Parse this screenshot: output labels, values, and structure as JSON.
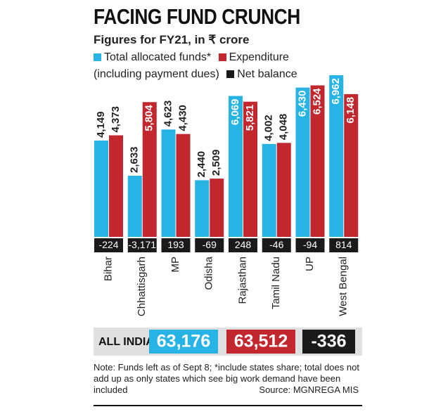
{
  "chart_data": {
    "type": "bar",
    "title": "FACING FUND CRUNCH",
    "subtitle": "Figures for FY21, in ₹ crore",
    "categories": [
      "Bihar",
      "Chhattisgarh",
      "MP",
      "Odisha",
      "Rajasthan",
      "Tamil Nadu",
      "UP",
      "West Bengal"
    ],
    "series": [
      {
        "name": "Total allocated funds*",
        "color": "#27b4e4",
        "values": [
          4149,
          2633,
          4623,
          2440,
          6069,
          4002,
          6430,
          6962
        ],
        "value_labels": [
          "4,149",
          "2,633",
          "4,623",
          "2,440",
          "6,069",
          "4,002",
          "6,430",
          "6,962"
        ]
      },
      {
        "name": "Expenditure (including payment dues)",
        "color": "#c1272d",
        "values": [
          4373,
          5804,
          4430,
          2509,
          5821,
          4048,
          6524,
          6148
        ],
        "value_labels": [
          "4,373",
          "5,804",
          "4,430",
          "2,509",
          "5,821",
          "4,048",
          "6,524",
          "6,148"
        ]
      },
      {
        "name": "Net balance",
        "color": "#1a1a1a",
        "values": [
          -224,
          -3171,
          193,
          -69,
          248,
          -46,
          -94,
          814
        ],
        "value_labels": [
          "-224",
          "-3,171",
          "193",
          "-69",
          "248",
          "-46",
          "-94",
          "814"
        ]
      }
    ],
    "total": {
      "label": "ALL INDIA",
      "values": [
        63176,
        63512,
        -336
      ],
      "value_labels": [
        "63,176",
        "63,512",
        "-336"
      ]
    },
    "note": "Note: Funds left as of Sept 8; *include states share; total does not add up as only states which see big work demand have been included",
    "source": "Source: MGNREGA MIS"
  }
}
